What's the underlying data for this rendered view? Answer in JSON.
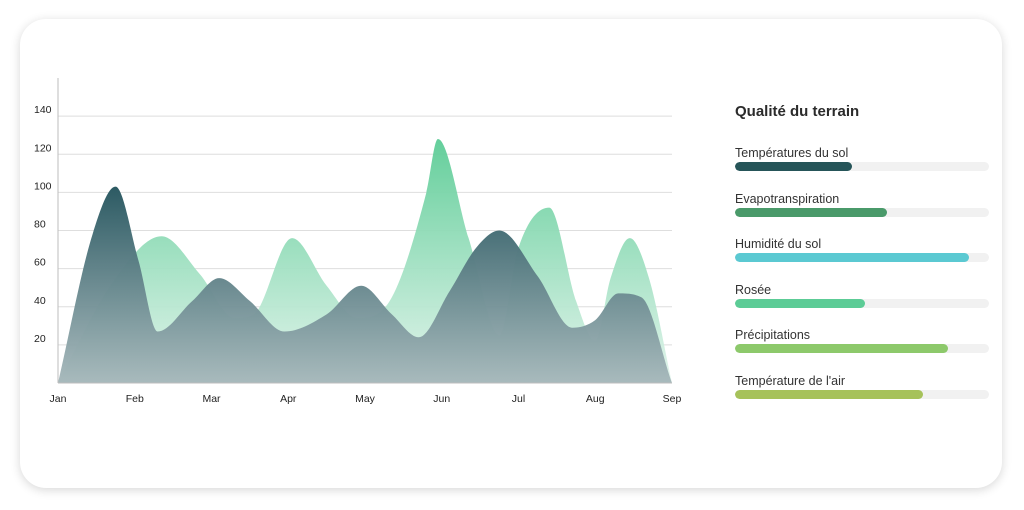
{
  "chart_data": {
    "type": "area",
    "categories": [
      "Jan",
      "Feb",
      "Mar",
      "Apr",
      "May",
      "Jun",
      "Jul",
      "Aug",
      "Sep"
    ],
    "y_ticks": [
      20,
      40,
      60,
      80,
      100,
      120,
      140
    ],
    "ylim": [
      0,
      160
    ],
    "grid": true,
    "series": [
      {
        "color": "#5ccc96",
        "points": [
          [
            0.0,
            0
          ],
          [
            0.7,
            52
          ],
          [
            1.35,
            77
          ],
          [
            1.85,
            57
          ],
          [
            2.3,
            34
          ],
          [
            2.55,
            36
          ],
          [
            3.05,
            76
          ],
          [
            3.5,
            51
          ],
          [
            3.9,
            34
          ],
          [
            4.35,
            45
          ],
          [
            4.8,
            100
          ],
          [
            4.95,
            128
          ],
          [
            5.35,
            76
          ],
          [
            5.75,
            25
          ],
          [
            6.0,
            71
          ],
          [
            6.4,
            92
          ],
          [
            6.75,
            43
          ],
          [
            7.0,
            22
          ],
          [
            7.2,
            55
          ],
          [
            7.45,
            76
          ],
          [
            7.7,
            55
          ],
          [
            8.0,
            0
          ]
        ]
      },
      {
        "color": "#2c5a63",
        "points": [
          [
            0.0,
            0
          ],
          [
            0.45,
            78
          ],
          [
            0.75,
            103
          ],
          [
            1.05,
            64
          ],
          [
            1.3,
            27
          ],
          [
            1.75,
            43
          ],
          [
            2.1,
            55
          ],
          [
            2.5,
            43
          ],
          [
            2.95,
            27
          ],
          [
            3.5,
            36
          ],
          [
            3.95,
            51
          ],
          [
            4.35,
            36
          ],
          [
            4.7,
            24
          ],
          [
            5.1,
            48
          ],
          [
            5.45,
            71
          ],
          [
            5.75,
            80
          ],
          [
            6.25,
            56
          ],
          [
            6.7,
            29
          ],
          [
            7.0,
            33
          ],
          [
            7.3,
            47
          ],
          [
            7.6,
            45
          ],
          [
            8.0,
            0
          ]
        ]
      }
    ]
  },
  "panel": {
    "title": "Qualité du terrain",
    "metrics": [
      {
        "label": "Températures du sol",
        "value": 0.46,
        "color": "#265559"
      },
      {
        "label": "Evapotranspiration",
        "value": 0.6,
        "color": "#4a9a6a"
      },
      {
        "label": "Humidité du sol",
        "value": 0.92,
        "color": "#5bc9d2"
      },
      {
        "label": "Rosée",
        "value": 0.51,
        "color": "#5ccc96"
      },
      {
        "label": "Précipitations",
        "value": 0.84,
        "color": "#8dc96b"
      },
      {
        "label": "Température de l'air",
        "value": 0.74,
        "color": "#a6c25a"
      }
    ]
  }
}
